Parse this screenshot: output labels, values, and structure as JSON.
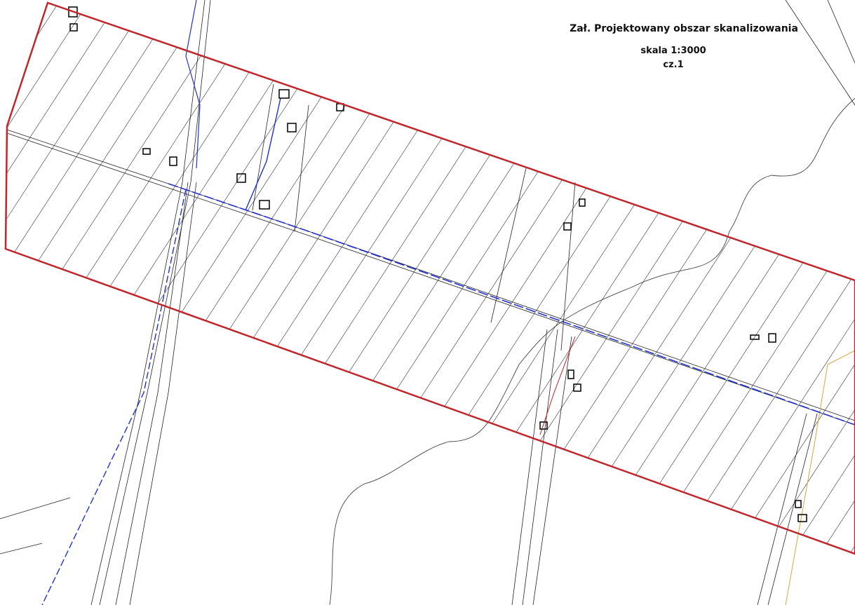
{
  "header": {
    "title": "Zał. Projektowany obszar  skanalizowania",
    "scale": "skala 1:3000",
    "part": "cz.1"
  }
}
